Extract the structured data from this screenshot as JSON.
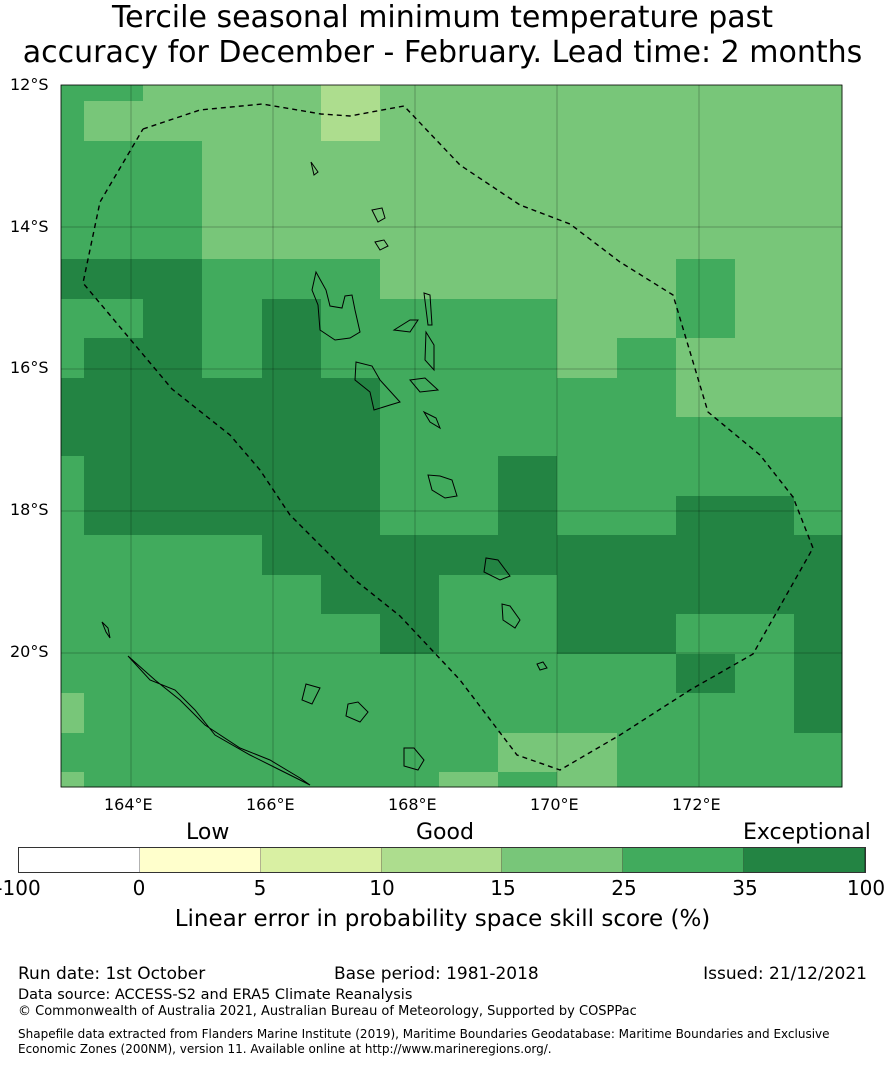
{
  "title": {
    "line1": "Tercile seasonal minimum temperature past",
    "line2": "accuracy for December - February. Lead time: 2 months"
  },
  "map": {
    "lat_labels": [
      "12°S",
      "14°S",
      "16°S",
      "18°S",
      "20°S"
    ],
    "lon_labels": [
      "164°E",
      "166°E",
      "168°E",
      "170°E",
      "172°E"
    ],
    "extent": {
      "lon": [
        163,
        174
      ],
      "lat": [
        -12,
        -21.9
      ]
    },
    "grid_categories_note_legend_index": "0=<0,1=0-5,2=5-10,3=10-15,4=15-25,5=25-35,6=35-100",
    "grid": [
      "55444344444444",
      "54444344444444",
      "55544444444444",
      "55544444444444",
      "55544444444444",
      "66655544444544",
      "55656555544544",
      "56656555545444",
      "66666655555444",
      "66666655555555",
      "56666655655555",
      "56666655655665",
      "55556666666666",
      "55555665566666",
      "55555565566556",
      "55555555555656",
      "45555555555556",
      "55555555445555",
      "45555554545555"
    ]
  },
  "legend": {
    "category_labels": [
      "Low",
      "Good",
      "Exceptional"
    ],
    "colors": [
      "#ffffff",
      "#ffffcc",
      "#d9f0a3",
      "#addd8e",
      "#78c679",
      "#41ab5d",
      "#238443"
    ],
    "ticks": [
      "-100",
      "0",
      "5",
      "10",
      "15",
      "25",
      "35",
      "100"
    ],
    "label": "Linear error in probability space skill score (%)"
  },
  "footer": {
    "run_date": "Run date: 1st October",
    "base_period": "Base period: 1981-2018",
    "issued": "Issued: 21/12/2021",
    "data_source": "Data source: ACCESS-S2 and ERA5 Climate Reanalysis",
    "copyright": "© Commonwealth of Australia 2021, Australian Bureau of Meteorology, Supported by COSPPac",
    "shapefile": "Shapefile data extracted from Flanders Marine Institute (2019), Maritime Boundaries Geodatabase: Maritime Boundaries and Exclusive",
    "shapefile2": "Economic Zones (200NM), version 11. Available online at http://www.marineregions.org/."
  }
}
